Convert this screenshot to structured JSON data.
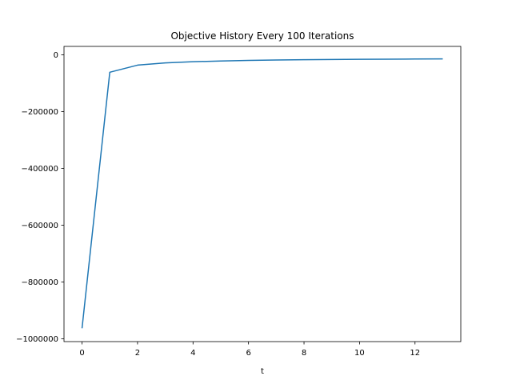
{
  "chart_data": {
    "type": "line",
    "title": "Objective History Every 100 Iterations",
    "xlabel": "t",
    "ylabel": "",
    "xlim": [
      -0.65,
      13.65
    ],
    "ylim": [
      -1010000,
      30000
    ],
    "xticks": [
      0,
      2,
      4,
      6,
      8,
      10,
      12
    ],
    "xtick_labels": [
      "0",
      "2",
      "4",
      "6",
      "8",
      "10",
      "12"
    ],
    "yticks": [
      0,
      -200000,
      -400000,
      -600000,
      -800000,
      -1000000
    ],
    "ytick_labels": [
      "0",
      "−200000",
      "−400000",
      "−600000",
      "−800000",
      "−1000000"
    ],
    "grid": false,
    "legend": "none",
    "series": [
      {
        "color": "#1f77b4",
        "x": [
          0,
          1,
          2,
          3,
          4,
          5,
          6,
          7,
          8,
          9,
          10,
          11,
          12,
          13
        ],
        "y": [
          -963000,
          -61000,
          -36000,
          -28000,
          -24000,
          -21500,
          -19500,
          -18000,
          -17000,
          -16000,
          -15500,
          -15000,
          -14500,
          -14000
        ]
      }
    ]
  }
}
